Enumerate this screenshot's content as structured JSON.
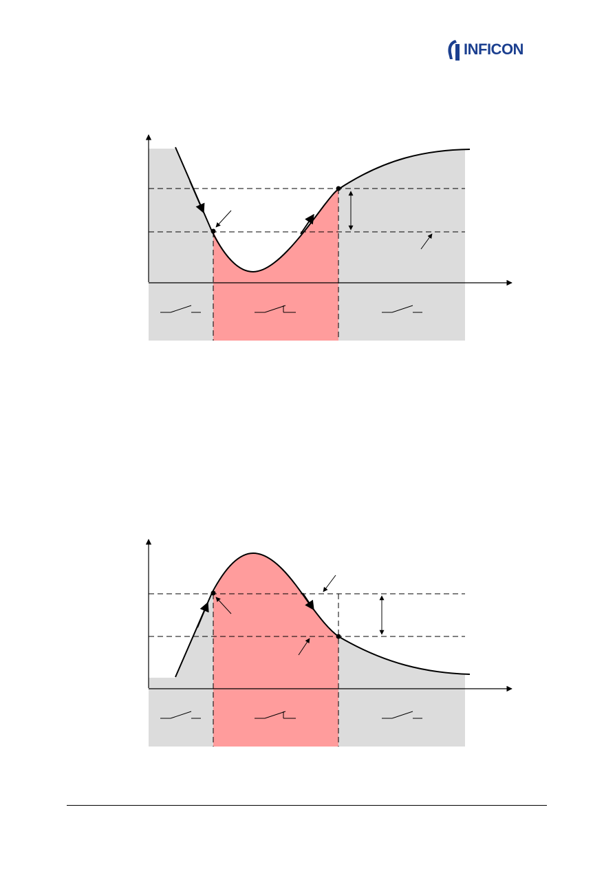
{
  "header": {
    "brand": "INFICON",
    "brand_color": "#1b3f8f"
  },
  "colors": {
    "shade_gray": "#dcdcdc",
    "shade_red": "#ff9c9c",
    "line": "#000000"
  },
  "diagrams": [
    {
      "name": "falling-then-rising-curve"
    },
    {
      "name": "rising-then-falling-curve"
    }
  ]
}
